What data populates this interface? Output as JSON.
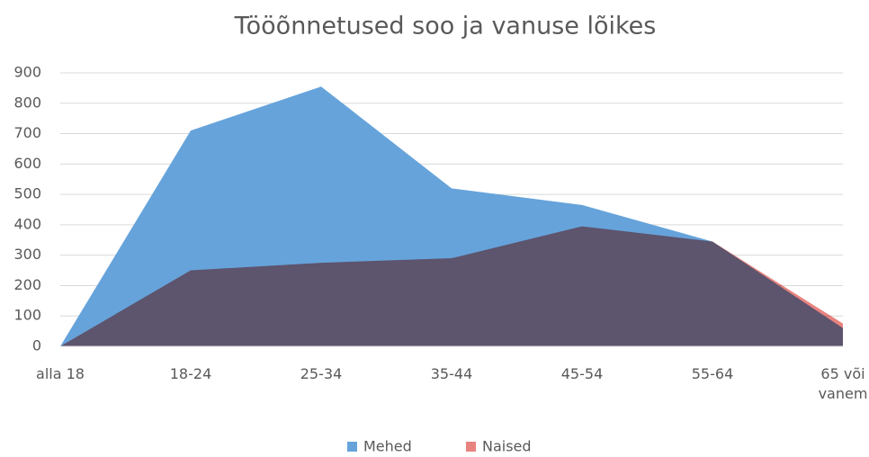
{
  "chart_data": {
    "type": "area",
    "title": "Tööõnnetused soo ja vanuse lõikes",
    "categories": [
      "alla 18",
      "18-24",
      "25-34",
      "35-44",
      "45-54",
      "55-64",
      "65 või vanem"
    ],
    "series": [
      {
        "name": "Mehed",
        "color": "#66a3db",
        "values": [
          0,
          710,
          855,
          520,
          465,
          345,
          60
        ]
      },
      {
        "name": "Naised",
        "color": "#e8837f",
        "values": [
          0,
          250,
          275,
          290,
          395,
          345,
          75
        ]
      }
    ],
    "ylim": [
      0,
      900
    ],
    "yticks": [
      0,
      100,
      200,
      300,
      400,
      500,
      600,
      700,
      800,
      900
    ],
    "grid": true,
    "legend": "bottom"
  }
}
